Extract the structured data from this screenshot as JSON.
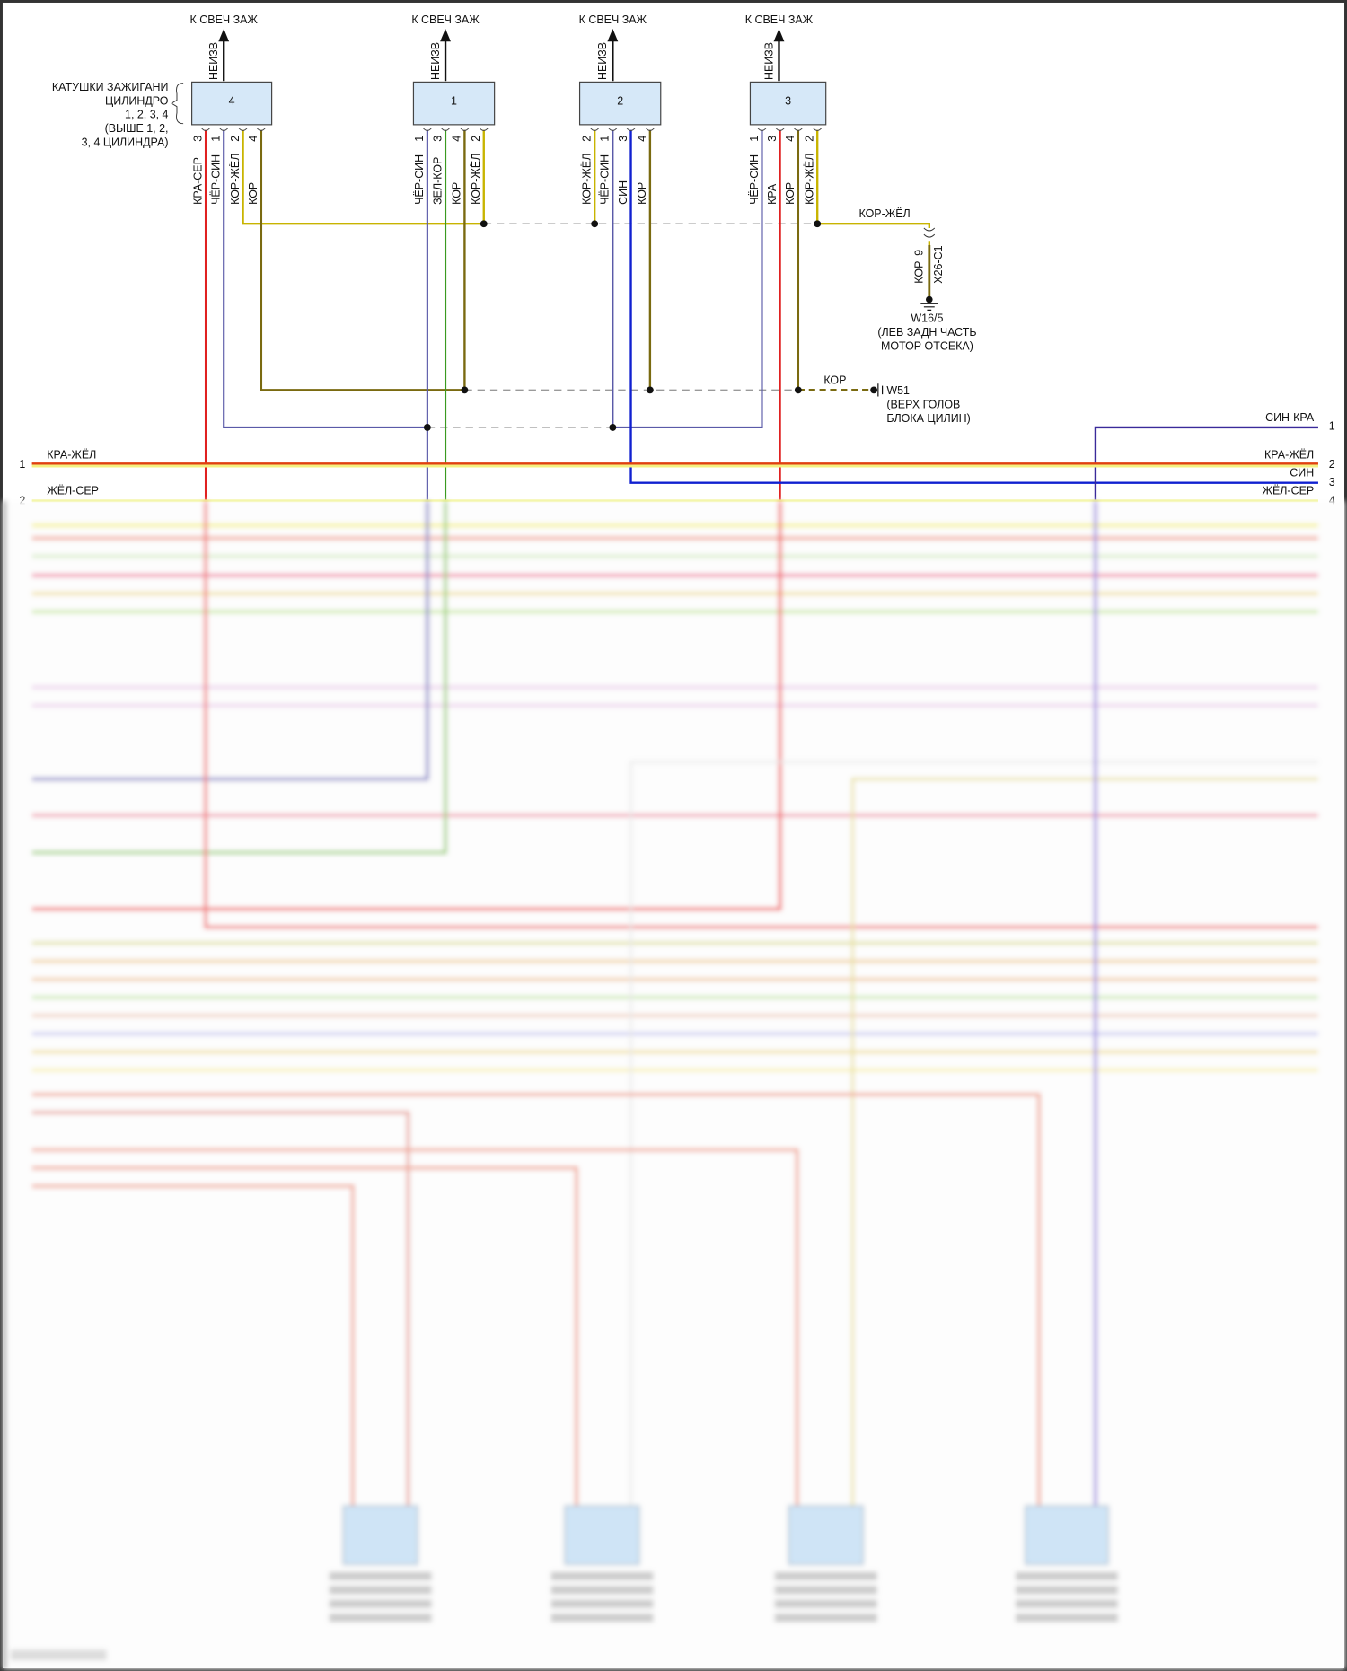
{
  "colors": {
    "red": "#e02020",
    "blue_purple": "#5a5aa8",
    "yellow": "#c8b400",
    "brown": "#7a6a10",
    "green": "#3a9a20",
    "blue": "#1020d0",
    "box_fill": "#d6e8f8",
    "dashed": "#9a9a9a"
  },
  "component_label": [
    "КАТУШКИ ЗАЖИГАНИ",
    "ЦИЛИНДРО",
    "1, 2, 3, 4",
    "(ВЫШЕ 1, 2,",
    "3, 4 ЦИЛИНДРА)"
  ],
  "coils": [
    {
      "num": "4",
      "output": "К СВЕЧ ЗАЖ",
      "output_wire": "НЕИЗВ",
      "pins": [
        {
          "pin": "3",
          "wire": "КРА-СЕР",
          "color": "red"
        },
        {
          "pin": "1",
          "wire": "ЧЁР-СИН",
          "color": "blue_purple"
        },
        {
          "pin": "2",
          "wire": "КОР-ЖЁЛ",
          "color": "yellow"
        },
        {
          "pin": "4",
          "wire": "КОР",
          "color": "brown"
        }
      ]
    },
    {
      "num": "1",
      "output": "К СВЕЧ ЗАЖ",
      "output_wire": "НЕИЗВ",
      "pins": [
        {
          "pin": "1",
          "wire": "ЧЁР-СИН",
          "color": "blue_purple"
        },
        {
          "pin": "3",
          "wire": "ЗЕЛ-КОР",
          "color": "green"
        },
        {
          "pin": "4",
          "wire": "КОР",
          "color": "brown"
        },
        {
          "pin": "2",
          "wire": "КОР-ЖЁЛ",
          "color": "yellow"
        }
      ]
    },
    {
      "num": "2",
      "output": "К СВЕЧ ЗАЖ",
      "output_wire": "НЕИЗВ",
      "pins": [
        {
          "pin": "2",
          "wire": "КОР-ЖЁЛ",
          "color": "yellow"
        },
        {
          "pin": "1",
          "wire": "ЧЁР-СИН",
          "color": "blue_purple"
        },
        {
          "pin": "3",
          "wire": "СИН",
          "color": "blue"
        },
        {
          "pin": "4",
          "wire": "КОР",
          "color": "brown"
        }
      ]
    },
    {
      "num": "3",
      "output": "К СВЕЧ ЗАЖ",
      "output_wire": "НЕИЗВ",
      "pins": [
        {
          "pin": "1",
          "wire": "ЧЁР-СИН",
          "color": "blue_purple"
        },
        {
          "pin": "3",
          "wire": "КРА",
          "color": "red"
        },
        {
          "pin": "4",
          "wire": "КОР",
          "color": "brown"
        },
        {
          "pin": "2",
          "wire": "КОР-ЖЁЛ",
          "color": "yellow"
        }
      ]
    }
  ],
  "ground1": {
    "wire": "КОР-ЖЁЛ",
    "conn_wire": "КОР",
    "conn_pin": "9",
    "connector": "X26-C1",
    "name": "W16/5",
    "location": [
      "(ЛЕВ ЗАДН ЧАСТЬ",
      "МОТОР ОТСЕКА)"
    ]
  },
  "ground2": {
    "wire": "КОР",
    "name": "W51",
    "location": [
      "(ВЕРХ ГОЛОВ",
      "БЛОКА ЦИЛИН)"
    ]
  },
  "bus": {
    "left": [
      {
        "pin": "1",
        "wire": "КРА-ЖЁЛ"
      },
      {
        "pin": "2",
        "wire": "ЖЁЛ-СЕР"
      }
    ],
    "right": [
      {
        "pin": "1",
        "wire": "СИН-КРА"
      },
      {
        "pin": "2",
        "wire": "КРА-ЖЁЛ"
      },
      {
        "pin": "3",
        "wire": "СИН"
      },
      {
        "pin": "4",
        "wire": "ЖЁЛ-СЕР"
      }
    ]
  }
}
